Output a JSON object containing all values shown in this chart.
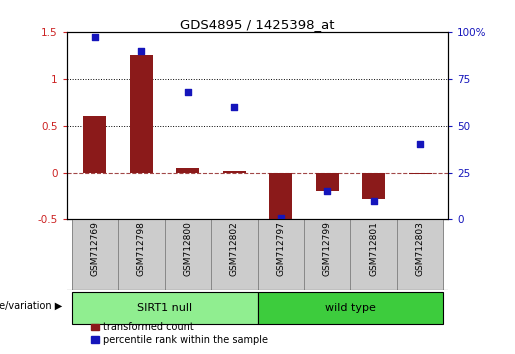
{
  "title": "GDS4895 / 1425398_at",
  "samples": [
    "GSM712769",
    "GSM712798",
    "GSM712800",
    "GSM712802",
    "GSM712797",
    "GSM712799",
    "GSM712801",
    "GSM712803"
  ],
  "transformed_count": [
    0.6,
    1.25,
    0.05,
    0.02,
    -0.5,
    -0.2,
    -0.28,
    -0.02
  ],
  "percentile_rank": [
    97,
    90,
    68,
    60,
    1,
    15,
    10,
    40
  ],
  "bar_color": "#8B1A1A",
  "dot_color": "#1515BB",
  "ylim_left": [
    -0.5,
    1.5
  ],
  "ylim_right": [
    0,
    100
  ],
  "yticks_left": [
    -0.5,
    0,
    0.5,
    1.0,
    1.5
  ],
  "yticks_right": [
    0,
    25,
    50,
    75,
    100
  ],
  "ytick_labels_left": [
    "-0.5",
    "0",
    "0.5",
    "1",
    "1.5"
  ],
  "ytick_labels_right": [
    "0",
    "25",
    "50",
    "75",
    "100%"
  ],
  "groups": [
    {
      "label": "SIRT1 null",
      "start": 0,
      "end": 4,
      "color": "#90EE90"
    },
    {
      "label": "wild type",
      "start": 4,
      "end": 8,
      "color": "#3DCC3D"
    }
  ],
  "group_label": "genotype/variation",
  "legend_bar_label": "transformed count",
  "legend_dot_label": "percentile rank within the sample",
  "tick_color_left": "#CC2222",
  "tick_color_right": "#1515BB",
  "background_color": "#ffffff",
  "cell_bg_color": "#cccccc",
  "cell_border_color": "#888888"
}
